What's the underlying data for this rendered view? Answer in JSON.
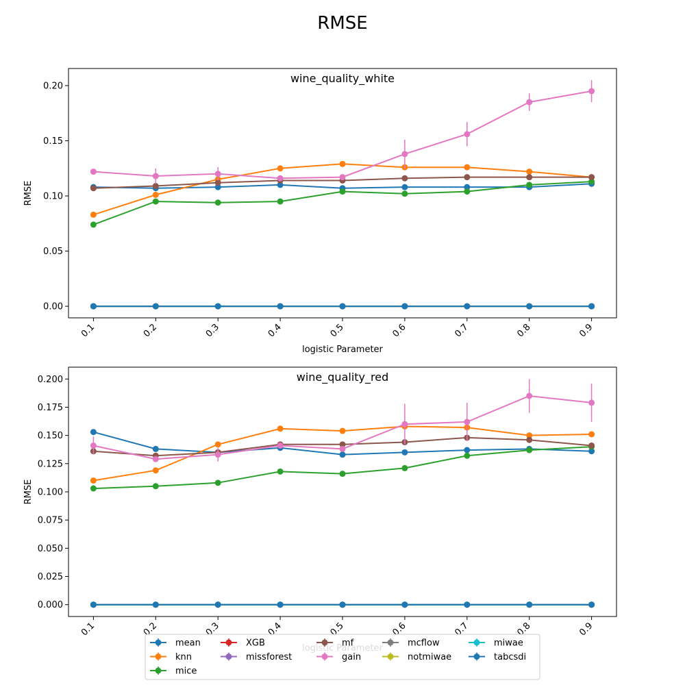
{
  "title": "RMSE",
  "colors": {
    "mean": "#1f77b4",
    "knn": "#ff7f0e",
    "mice": "#2ca02c",
    "XGB": "#d62728",
    "missforest": "#9467bd",
    "mf": "#8c564b",
    "gain": "#e377c2",
    "mcflow": "#7f7f7f",
    "notmiwae": "#bcbd22",
    "miwae": "#17becf",
    "tabcsdi": "#1f77b4"
  },
  "legend": {
    "columns": [
      [
        "mean",
        "knn",
        "mice"
      ],
      [
        "XGB",
        "missforest"
      ],
      [
        "mf",
        "gain"
      ],
      [
        "mcflow",
        "notmiwae"
      ],
      [
        "miwae",
        "tabcsdi"
      ]
    ]
  },
  "chart_data": [
    {
      "type": "line",
      "title": "wine_quality_white",
      "xlabel": "logistic Parameter",
      "ylabel": "RMSE",
      "x": [
        "0.1",
        "0.2",
        "0.3",
        "0.4",
        "0.5",
        "0.6",
        "0.7",
        "0.8",
        "0.9"
      ],
      "ylim": [
        -0.0105,
        0.2155
      ],
      "yticks": [
        "0.00",
        "0.05",
        "0.10",
        "0.15",
        "0.20"
      ],
      "series": [
        {
          "name": "mean",
          "values": [
            0.108,
            0.107,
            0.108,
            0.11,
            0.107,
            0.108,
            0.108,
            0.108,
            0.111
          ]
        },
        {
          "name": "knn",
          "values": [
            0.083,
            0.101,
            0.115,
            0.125,
            0.129,
            0.126,
            0.126,
            0.122,
            0.117
          ]
        },
        {
          "name": "mice",
          "values": [
            0.074,
            0.095,
            0.094,
            0.095,
            0.104,
            0.102,
            0.104,
            0.11,
            0.113
          ]
        },
        {
          "name": "XGB",
          "values": [
            0,
            0,
            0,
            0,
            0,
            0,
            0,
            0,
            0
          ]
        },
        {
          "name": "missforest",
          "values": [
            0,
            0,
            0,
            0,
            0,
            0,
            0,
            0,
            0
          ]
        },
        {
          "name": "mf",
          "values": [
            0.107,
            0.109,
            0.112,
            0.114,
            0.114,
            0.116,
            0.117,
            0.117,
            0.117
          ]
        },
        {
          "name": "gain",
          "values": [
            0.122,
            0.118,
            0.12,
            0.116,
            0.117,
            0.138,
            0.156,
            0.185,
            0.195
          ],
          "error": [
            0.002,
            0.007,
            0.006,
            0.002,
            0.002,
            0.013,
            0.011,
            0.008,
            0.01
          ]
        },
        {
          "name": "mcflow",
          "values": [
            0,
            0,
            0,
            0,
            0,
            0,
            0,
            0,
            0
          ]
        },
        {
          "name": "notmiwae",
          "values": [
            0,
            0,
            0,
            0,
            0,
            0,
            0,
            0,
            0
          ]
        },
        {
          "name": "miwae",
          "values": [
            0,
            0,
            0,
            0,
            0,
            0,
            0,
            0,
            0
          ]
        },
        {
          "name": "tabcsdi",
          "values": [
            0,
            0,
            0,
            0,
            0,
            0,
            0,
            0,
            0
          ]
        }
      ]
    },
    {
      "type": "line",
      "title": "wine_quality_red",
      "xlabel": "logistic Parameter",
      "ylabel": "RMSE",
      "x": [
        "0.1",
        "0.2",
        "0.3",
        "0.4",
        "0.5",
        "0.6",
        "0.7",
        "0.8",
        "0.9"
      ],
      "ylim": [
        -0.0105,
        0.2105
      ],
      "yticks": [
        "0.000",
        "0.025",
        "0.050",
        "0.075",
        "0.100",
        "0.125",
        "0.150",
        "0.175",
        "0.200"
      ],
      "series": [
        {
          "name": "mean",
          "values": [
            0.153,
            0.138,
            0.135,
            0.139,
            0.133,
            0.135,
            0.137,
            0.138,
            0.136
          ]
        },
        {
          "name": "knn",
          "values": [
            0.11,
            0.119,
            0.142,
            0.156,
            0.154,
            0.158,
            0.157,
            0.15,
            0.151
          ]
        },
        {
          "name": "mice",
          "values": [
            0.103,
            0.105,
            0.108,
            0.118,
            0.116,
            0.121,
            0.132,
            0.137,
            0.14
          ]
        },
        {
          "name": "XGB",
          "values": [
            0,
            0,
            0,
            0,
            0,
            0,
            0,
            0,
            0
          ]
        },
        {
          "name": "missforest",
          "values": [
            0,
            0,
            0,
            0,
            0,
            0,
            0,
            0,
            0
          ]
        },
        {
          "name": "mf",
          "values": [
            0.136,
            0.132,
            0.135,
            0.142,
            0.142,
            0.144,
            0.148,
            0.146,
            0.141
          ]
        },
        {
          "name": "gain",
          "values": [
            0.141,
            0.129,
            0.133,
            0.141,
            0.138,
            0.16,
            0.162,
            0.185,
            0.179
          ],
          "error": [
            0.008,
            0.002,
            0.006,
            0.002,
            0.002,
            0.018,
            0.017,
            0.015,
            0.017
          ]
        },
        {
          "name": "mcflow",
          "values": [
            0,
            0,
            0,
            0,
            0,
            0,
            0,
            0,
            0
          ]
        },
        {
          "name": "notmiwae",
          "values": [
            0,
            0,
            0,
            0,
            0,
            0,
            0,
            0,
            0
          ]
        },
        {
          "name": "miwae",
          "values": [
            0,
            0,
            0,
            0,
            0,
            0,
            0,
            0,
            0
          ]
        },
        {
          "name": "tabcsdi",
          "values": [
            0,
            0,
            0,
            0,
            0,
            0,
            0,
            0,
            0
          ]
        }
      ]
    }
  ]
}
